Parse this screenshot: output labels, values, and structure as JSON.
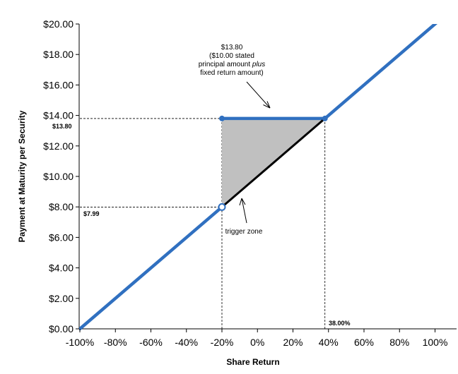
{
  "chart_data": {
    "type": "line",
    "xlabel": "Share Return",
    "ylabel": "Payment at Maturity per Security",
    "xlim": [
      -100,
      105
    ],
    "ylim": [
      0,
      20
    ],
    "x_ticks": [
      -100,
      -80,
      -60,
      -40,
      -20,
      0,
      20,
      40,
      60,
      80,
      100
    ],
    "x_tick_labels": [
      "-100%",
      "-80%",
      "-60%",
      "-40%",
      "-20%",
      "0%",
      "20%",
      "40%",
      "60%",
      "80%",
      "100%"
    ],
    "y_ticks": [
      0,
      2,
      4,
      6,
      8,
      10,
      12,
      14,
      16,
      18,
      20
    ],
    "y_tick_labels": [
      "$0.00",
      "$2.00",
      "$4.00",
      "$6.00",
      "$8.00",
      "$10.00",
      "$12.00",
      "$14.00",
      "$16.00",
      "$18.00",
      "$20.00"
    ],
    "grid": false,
    "series": [
      {
        "role": "payoff-lower",
        "color": "#3070c0",
        "points": [
          [
            -100,
            0
          ],
          [
            -20,
            7.99
          ]
        ]
      },
      {
        "role": "payoff-flat",
        "color": "#3070c0",
        "points": [
          [
            -20,
            13.8
          ],
          [
            38,
            13.8
          ]
        ]
      },
      {
        "role": "payoff-upper",
        "color": "#3070c0",
        "points": [
          [
            38,
            13.8
          ],
          [
            105,
            20.5
          ]
        ]
      },
      {
        "role": "share-return-line",
        "color": "#000000",
        "points": [
          [
            -20,
            7.99
          ],
          [
            38,
            13.8
          ]
        ]
      }
    ],
    "shaded_region": {
      "color": "#c0c0c0",
      "points": [
        [
          -20,
          7.99
        ],
        [
          -20,
          13.8
        ],
        [
          38,
          13.8
        ]
      ]
    },
    "markers": [
      {
        "x": -20,
        "y": 13.8,
        "style": "filled"
      },
      {
        "x": 38,
        "y": 13.8,
        "style": "filled"
      },
      {
        "x": -20,
        "y": 7.99,
        "style": "open"
      }
    ],
    "reference_lines": [
      {
        "orientation": "horizontal",
        "y": 13.8,
        "x_from": -100,
        "x_to": -20
      },
      {
        "orientation": "horizontal",
        "y": 7.99,
        "x_from": -100,
        "x_to": -20
      },
      {
        "orientation": "vertical",
        "x": -20,
        "y_from": 0,
        "y_to": 13.8
      },
      {
        "orientation": "vertical",
        "x": 38,
        "y_from": 0,
        "y_to": 13.8
      }
    ],
    "value_labels": {
      "y_high": "$13.80",
      "y_low": "$7.99",
      "x_knee": "38.00%"
    },
    "annotations": {
      "cap_note": [
        "$13.80",
        "($10.00 stated",
        "principal amount plus",
        "fixed return amount)"
      ],
      "trigger_note": "trigger zone"
    },
    "colors": {
      "payoff": "#3070c0",
      "shade": "#c0c0c0",
      "share_line": "#000000"
    }
  }
}
